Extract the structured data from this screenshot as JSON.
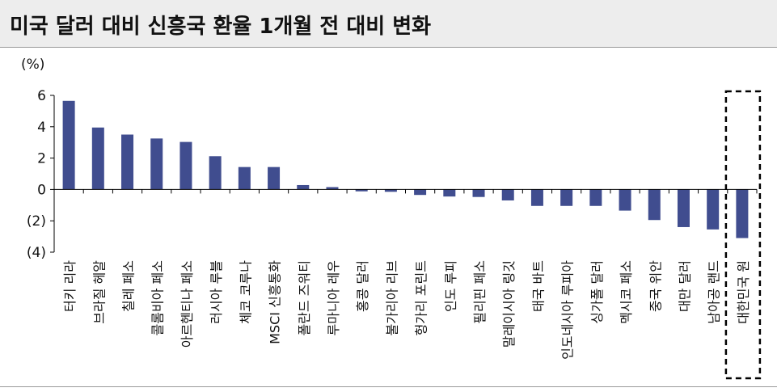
{
  "title": "미국 달러 대비 신흥국 환율 1개월 전 대비 변화",
  "colors": {
    "bar": "#404d8f",
    "axis": "#000000",
    "highlight_box": "#000000"
  },
  "chart_data": {
    "type": "bar",
    "title": "미국 달러 대비 신흥국 환율 1개월 전 대비 변화",
    "ylabel": "(%)",
    "xlabel": "",
    "ylim": [
      -4,
      6
    ],
    "y_ticks": [
      6,
      4,
      2,
      0,
      -2,
      -4
    ],
    "y_tick_labels": [
      "6",
      "4",
      "2",
      "0",
      "(2)",
      "(4)"
    ],
    "grid": false,
    "categories": [
      "터키 리라",
      "브라질 헤알",
      "칠레 페소",
      "콜롬비아 페소",
      "아르헨티나 페소",
      "러시아 루블",
      "체코 코루나",
      "MSCI 신흥통화",
      "폴란드 즈워티",
      "루마니아 레우",
      "홍콩 달러",
      "불가리아 리브",
      "헝가리 포린트",
      "인도 루피",
      "필리핀 페소",
      "말레이시아 링깃",
      "태국 바트",
      "인도네시아 루피아",
      "싱가폴 달러",
      "멕시코 페소",
      "중국 위안",
      "대만 달러",
      "남아공 랜드",
      "대한민국 원"
    ],
    "values": [
      5.65,
      3.95,
      3.5,
      3.25,
      3.03,
      2.12,
      1.43,
      1.43,
      0.28,
      0.15,
      -0.12,
      -0.15,
      -0.35,
      -0.45,
      -0.48,
      -0.7,
      -1.05,
      -1.05,
      -1.05,
      -1.35,
      -1.95,
      -2.4,
      -2.55,
      -3.1
    ],
    "highlighted_category": "대한민국 원"
  }
}
